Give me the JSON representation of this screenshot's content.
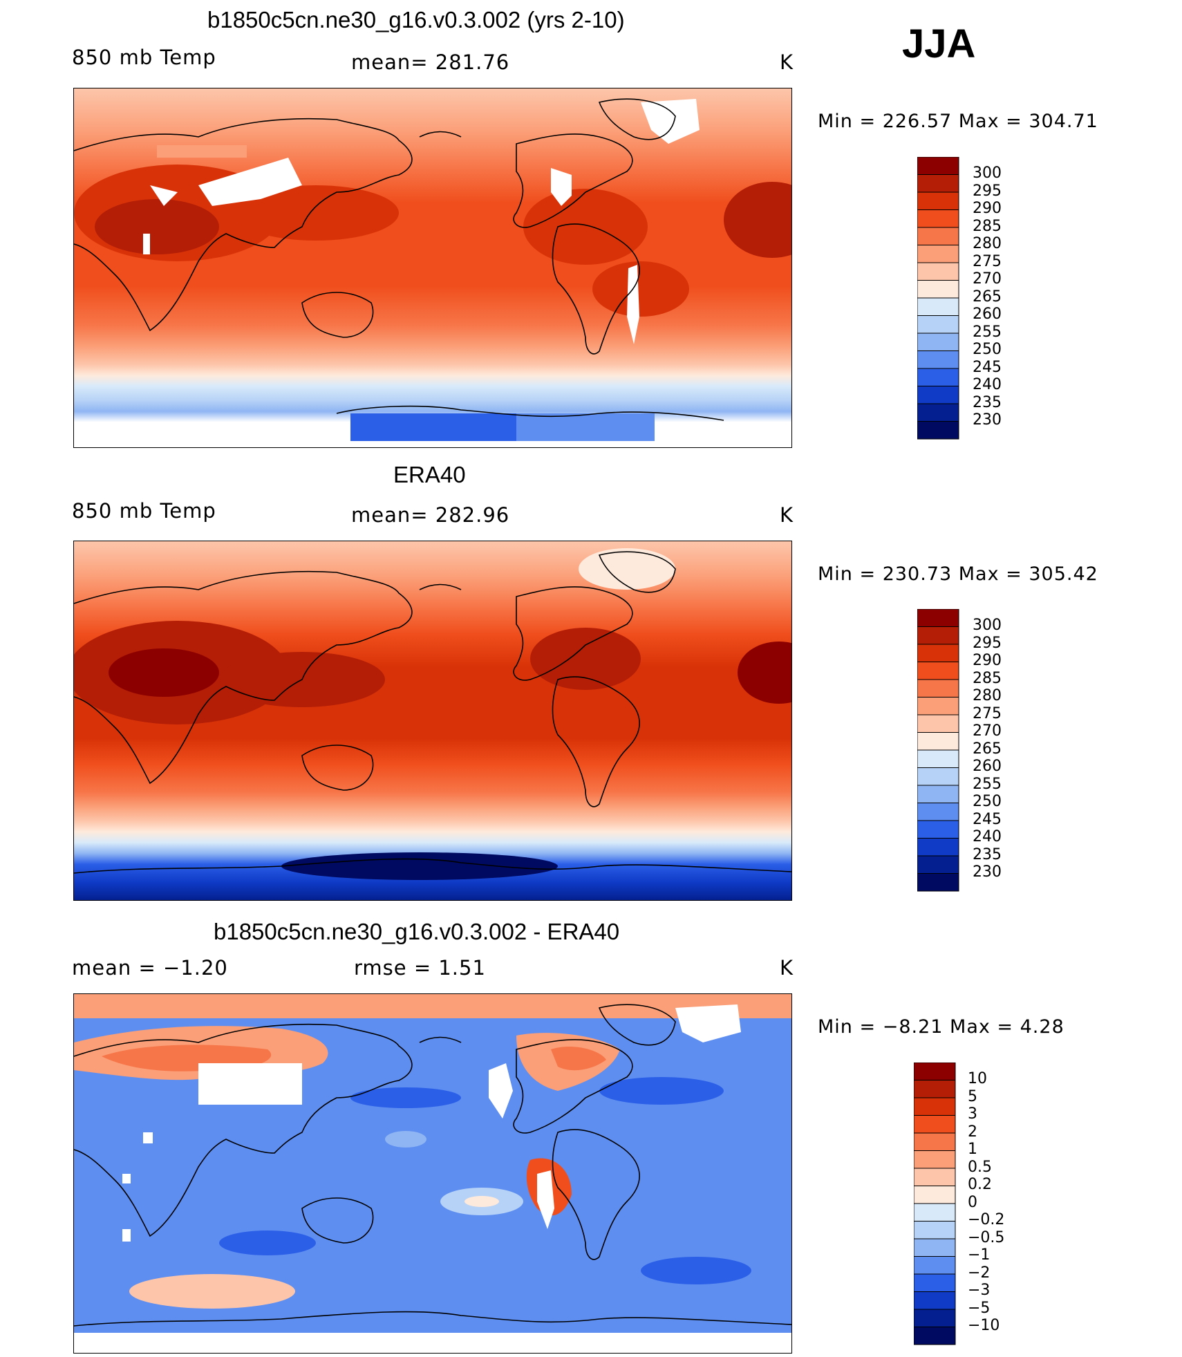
{
  "season": "JJA",
  "panels": [
    {
      "title": "b1850c5cn.ne30_g16.v0.3.002 (yrs 2-10)",
      "left_label": "850 mb Temp",
      "center_label": "mean= 281.76",
      "units": "K",
      "minmax": "Min = 226.57 Max = 304.71",
      "legend_labels": [
        "300",
        "295",
        "290",
        "285",
        "280",
        "275",
        "270",
        "265",
        "260",
        "255",
        "250",
        "245",
        "240",
        "235",
        "230"
      ]
    },
    {
      "title": "ERA40",
      "left_label": "850 mb Temp",
      "center_label": "mean= 282.96",
      "units": "K",
      "minmax": "Min = 230.73 Max = 305.42",
      "legend_labels": [
        "300",
        "295",
        "290",
        "285",
        "280",
        "275",
        "270",
        "265",
        "260",
        "255",
        "250",
        "245",
        "240",
        "235",
        "230"
      ]
    },
    {
      "title": "b1850c5cn.ne30_g16.v0.3.002 - ERA40",
      "left_label": "mean = −1.20",
      "center_label": "rmse = 1.51",
      "units": "K",
      "minmax": "Min = −8.21 Max = 4.28",
      "legend_labels": [
        "10",
        "5",
        "3",
        "2",
        "1",
        "0.5",
        "0.2",
        "0",
        "−0.2",
        "−0.5",
        "−1",
        "−2",
        "−3",
        "−5",
        "−10"
      ]
    }
  ],
  "colors": {
    "abs_scale": [
      "#8c0000",
      "#b41e06",
      "#d83308",
      "#f04e1c",
      "#f77649",
      "#fb9f78",
      "#fdc6ab",
      "#feeadc",
      "#d8eafa",
      "#b6d2f6",
      "#8fb5f3",
      "#5e8ef0",
      "#2b5fe8",
      "#0f3bc7",
      "#042090",
      "#000a60"
    ],
    "diff_scale": [
      "#8c0000",
      "#b41e06",
      "#d83308",
      "#f04e1c",
      "#f77649",
      "#fb9f78",
      "#fdc6ab",
      "#feeadc",
      "#d8eafa",
      "#b6d2f6",
      "#8fb5f3",
      "#5e8ef0",
      "#2b5fe8",
      "#0f3bc7",
      "#042090",
      "#000a60"
    ]
  }
}
